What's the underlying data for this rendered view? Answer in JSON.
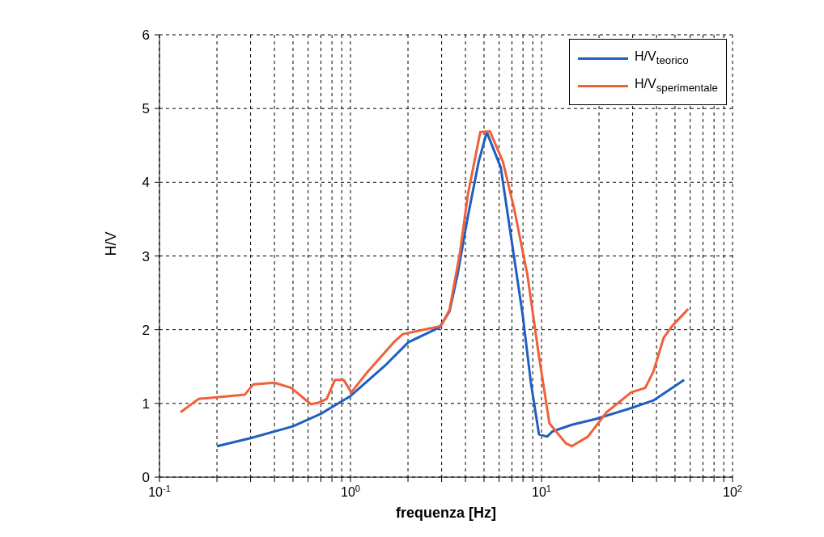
{
  "chart_data": {
    "type": "line",
    "xlabel": "frequenza [Hz]",
    "ylabel": "H/V",
    "log": "x",
    "grid": true,
    "legend": "top right",
    "marker": "none",
    "line_style": "solid",
    "xlim": [
      0.1,
      100
    ],
    "ylim": [
      0,
      6
    ],
    "xticks": [
      {
        "value": 0.1,
        "label": "10$^{-1}$"
      },
      {
        "value": 0.2,
        "label": null
      },
      {
        "value": 0.3,
        "label": null
      },
      {
        "value": 0.4,
        "label": null
      },
      {
        "value": 0.5,
        "label": null
      },
      {
        "value": 0.6,
        "label": null
      },
      {
        "value": 0.7,
        "label": null
      },
      {
        "value": 0.8,
        "label": null
      },
      {
        "value": 0.9,
        "label": null
      },
      {
        "value": 1,
        "label": "10$^{0}$"
      },
      {
        "value": 2,
        "label": null
      },
      {
        "value": 3,
        "label": null
      },
      {
        "value": 4,
        "label": null
      },
      {
        "value": 5,
        "label": null
      },
      {
        "value": 6,
        "label": null
      },
      {
        "value": 7,
        "label": null
      },
      {
        "value": 8,
        "label": null
      },
      {
        "value": 9,
        "label": null
      },
      {
        "value": 10,
        "label": "10$^{1}$"
      },
      {
        "value": 20,
        "label": null
      },
      {
        "value": 30,
        "label": null
      },
      {
        "value": 40,
        "label": null
      },
      {
        "value": 50,
        "label": null
      },
      {
        "value": 60,
        "label": null
      },
      {
        "value": 70,
        "label": null
      },
      {
        "value": 80,
        "label": null
      },
      {
        "value": 90,
        "label": null
      },
      {
        "value": 100,
        "label": "10$^{2}$"
      }
    ],
    "yticks": [
      0,
      1,
      2,
      3,
      4,
      5,
      6
    ],
    "series": [
      {
        "name": "H/V$_{teorico}$",
        "color": "#1f5fbf",
        "x": [
          0.2,
          0.3,
          0.5,
          0.7,
          1,
          1.54,
          2.01,
          2.92,
          3.3,
          3.63,
          4.12,
          4.69,
          5.17,
          6.12,
          6.9,
          7.98,
          8.8,
          9.7,
          10.7,
          11.4,
          14.4,
          19.3,
          28.9,
          38.5,
          55.8
        ],
        "values": [
          0.42,
          0.53,
          0.69,
          0.86,
          1.1,
          1.53,
          1.83,
          2.03,
          2.25,
          2.74,
          3.54,
          4.28,
          4.68,
          4.2,
          3.29,
          2.19,
          1.28,
          0.58,
          0.55,
          0.62,
          0.71,
          0.79,
          0.93,
          1.04,
          1.32
        ]
      },
      {
        "name": "H/V$_{sperimentale}$",
        "color": "#f0603a",
        "x": [
          0.129,
          0.16,
          0.28,
          0.31,
          0.4,
          0.49,
          0.62,
          0.68,
          0.75,
          0.83,
          0.92,
          1.01,
          1.23,
          1.7,
          1.88,
          2.52,
          2.98,
          3.3,
          3.74,
          4.12,
          4.78,
          5.37,
          6.28,
          7.22,
          8.44,
          9.7,
          11,
          13.4,
          14.4,
          17.5,
          21.9,
          26.7,
          29.5,
          34.9,
          38.5,
          43.6,
          48.3,
          58.6
        ],
        "values": [
          0.88,
          1.06,
          1.12,
          1.26,
          1.28,
          1.21,
          0.99,
          1.01,
          1.06,
          1.32,
          1.32,
          1.15,
          1.43,
          1.84,
          1.94,
          2.01,
          2.05,
          2.27,
          3.04,
          3.84,
          4.68,
          4.69,
          4.28,
          3.62,
          2.74,
          1.64,
          0.73,
          0.46,
          0.42,
          0.55,
          0.88,
          1.06,
          1.15,
          1.21,
          1.43,
          1.89,
          2.05,
          2.28
        ]
      }
    ]
  }
}
